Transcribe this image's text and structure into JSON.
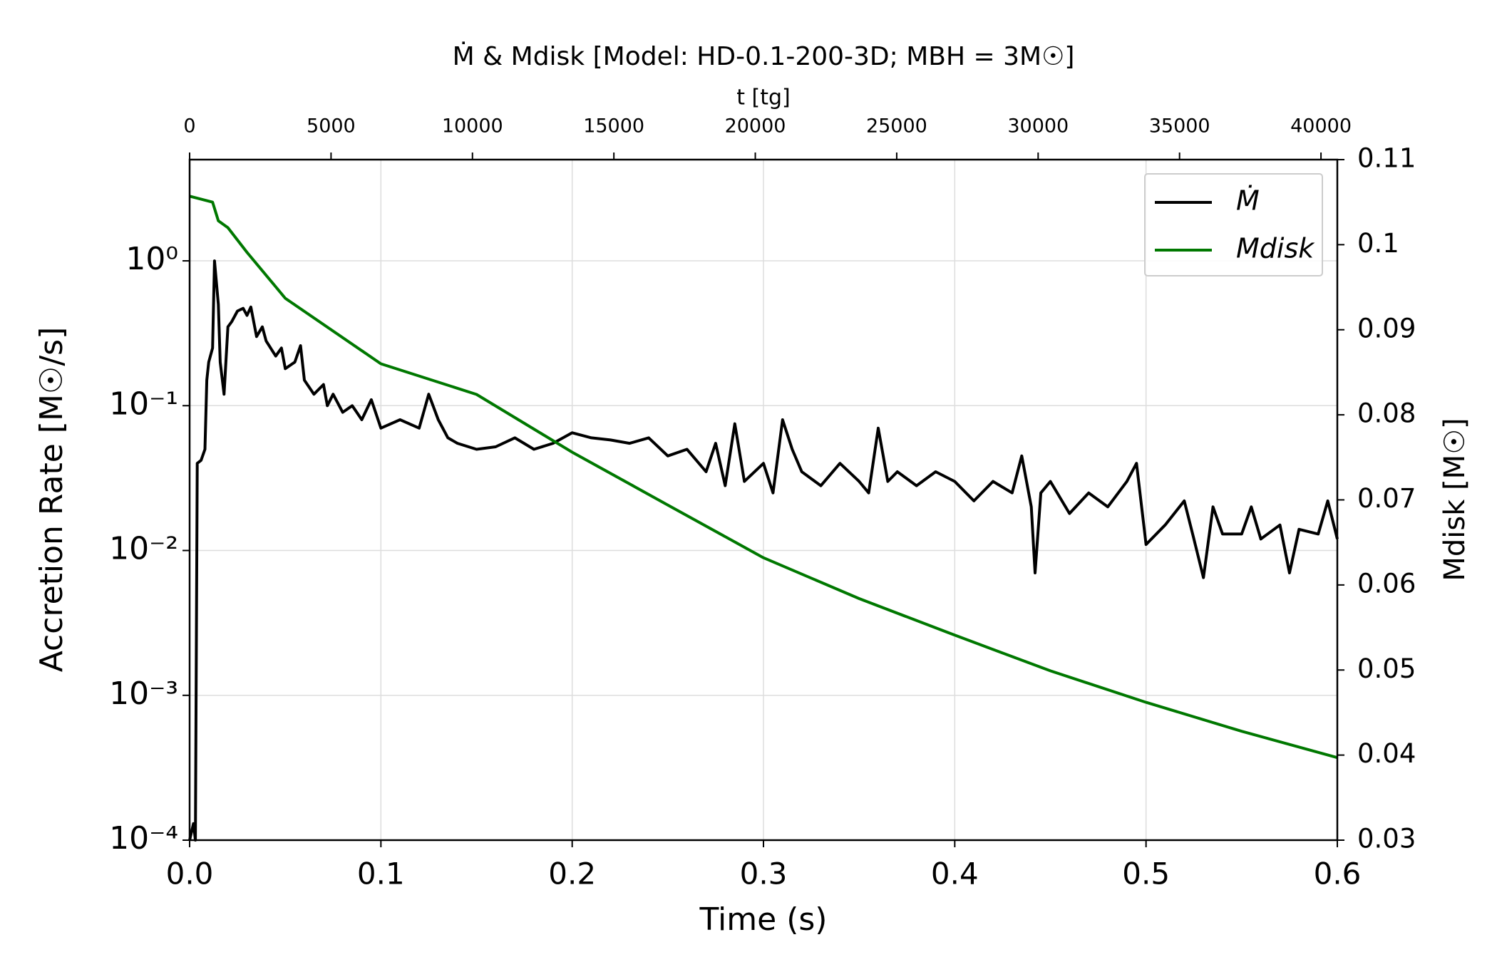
{
  "chart_data": {
    "type": "line",
    "title": "Ṁ & Mdisk   [Model: HD-0.1-200-3D; MBH = 3M☉]",
    "xlabel": "Time (s)",
    "ylabel": "Accretion Rate [M☉/s]",
    "y2label": "Mdisk [M☉]",
    "x2label": "t [tg]",
    "xlim": [
      0,
      0.6
    ],
    "xticks": [
      {
        "value": 0,
        "label": "0.0"
      },
      0.1,
      0.2,
      0.3,
      0.4,
      0.5,
      0.6
    ],
    "x2lim": [
      0,
      40578
    ],
    "x2ticks": [
      0,
      5000,
      10000,
      15000,
      20000,
      25000,
      30000,
      35000,
      40000
    ],
    "ylim": [
      0.0001,
      5
    ],
    "yscale": "log",
    "yticks": [
      {
        "value": 0.0001,
        "label": "10⁻⁴"
      },
      {
        "value": 0.001,
        "label": "10⁻³"
      },
      {
        "value": 0.01,
        "label": "10⁻²"
      },
      {
        "value": 0.1,
        "label": "10⁻¹"
      },
      {
        "value": 1,
        "label": "10⁰"
      }
    ],
    "y2lim": [
      0.03,
      0.11
    ],
    "y2ticks": [
      0.03,
      0.04,
      0.05,
      0.06,
      0.07,
      0.08,
      0.09,
      0.1,
      0.11
    ],
    "grid": true,
    "legend": "upper right",
    "series": [
      {
        "name": "Ṁ",
        "color": "#000000",
        "x": [
          0,
          0.002,
          0.003,
          0.004,
          0.006,
          0.008,
          0.009,
          0.01,
          0.012,
          0.013,
          0.015,
          0.016,
          0.018,
          0.02,
          0.022,
          0.025,
          0.028,
          0.03,
          0.032,
          0.035,
          0.038,
          0.04,
          0.045,
          0.048,
          0.05,
          0.055,
          0.058,
          0.06,
          0.065,
          0.07,
          0.072,
          0.075,
          0.08,
          0.085,
          0.09,
          0.095,
          0.1,
          0.11,
          0.12,
          0.125,
          0.13,
          0.135,
          0.14,
          0.15,
          0.16,
          0.17,
          0.18,
          0.19,
          0.2,
          0.21,
          0.22,
          0.23,
          0.24,
          0.25,
          0.26,
          0.27,
          0.275,
          0.28,
          0.285,
          0.29,
          0.3,
          0.305,
          0.31,
          0.315,
          0.32,
          0.33,
          0.34,
          0.35,
          0.355,
          0.36,
          0.365,
          0.37,
          0.38,
          0.39,
          0.4,
          0.41,
          0.42,
          0.43,
          0.435,
          0.44,
          0.442,
          0.445,
          0.45,
          0.46,
          0.47,
          0.48,
          0.49,
          0.495,
          0.5,
          0.51,
          0.52,
          0.525,
          0.53,
          0.535,
          0.54,
          0.55,
          0.555,
          0.56,
          0.57,
          0.575,
          0.58,
          0.59,
          0.595,
          0.6
        ],
        "values": [
          0.0001,
          0.00013,
          0.0001,
          0.04,
          0.042,
          0.05,
          0.15,
          0.2,
          0.25,
          1.0,
          0.5,
          0.2,
          0.12,
          0.35,
          0.38,
          0.45,
          0.47,
          0.42,
          0.48,
          0.3,
          0.35,
          0.28,
          0.22,
          0.25,
          0.18,
          0.2,
          0.26,
          0.15,
          0.12,
          0.14,
          0.1,
          0.12,
          0.09,
          0.1,
          0.08,
          0.11,
          0.07,
          0.08,
          0.07,
          0.12,
          0.08,
          0.06,
          0.055,
          0.05,
          0.052,
          0.06,
          0.05,
          0.055,
          0.065,
          0.06,
          0.058,
          0.055,
          0.06,
          0.045,
          0.05,
          0.035,
          0.055,
          0.028,
          0.075,
          0.03,
          0.04,
          0.025,
          0.08,
          0.05,
          0.035,
          0.028,
          0.04,
          0.03,
          0.025,
          0.07,
          0.03,
          0.035,
          0.028,
          0.035,
          0.03,
          0.022,
          0.03,
          0.025,
          0.045,
          0.02,
          0.007,
          0.025,
          0.03,
          0.018,
          0.025,
          0.02,
          0.03,
          0.04,
          0.011,
          0.015,
          0.022,
          0.012,
          0.0065,
          0.02,
          0.013,
          0.013,
          0.02,
          0.012,
          0.015,
          0.007,
          0.014,
          0.013,
          0.022,
          0.012
        ]
      },
      {
        "name": "Mdisk",
        "color": "#007800",
        "axis": "y2",
        "x": [
          0,
          0.012,
          0.015,
          0.02,
          0.03,
          0.05,
          0.1,
          0.15,
          0.2,
          0.25,
          0.3,
          0.35,
          0.4,
          0.45,
          0.5,
          0.55,
          0.6
        ],
        "values": [
          0.1057,
          0.105,
          0.1028,
          0.102,
          0.0991,
          0.0937,
          0.086,
          0.0824,
          0.0756,
          0.0694,
          0.0632,
          0.0584,
          0.0541,
          0.0499,
          0.0462,
          0.0428,
          0.0397
        ]
      }
    ]
  }
}
